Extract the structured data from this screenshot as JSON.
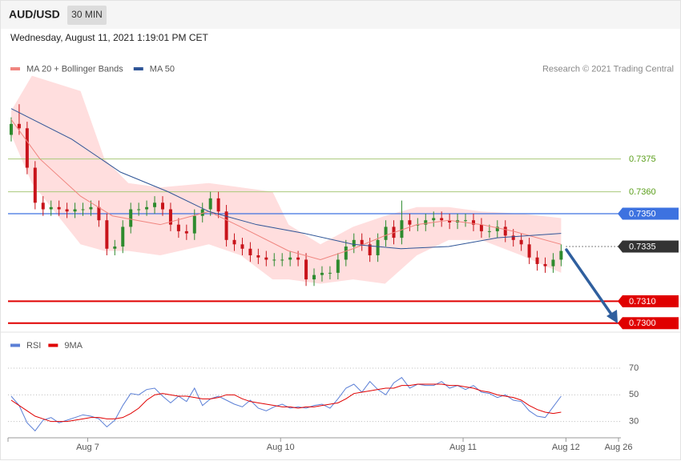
{
  "header": {
    "symbol": "AUD/USD",
    "interval": "30 MIN",
    "timestamp": "Wednesday, August 11, 2021 1:19:01 PM CET"
  },
  "chart_data": [
    {
      "type": "candlestick",
      "credit": "Research © 2021 Trading Central",
      "up_color": "#2e8b2e",
      "down_color": "#c8141b",
      "open": [
        0.7386,
        0.7391,
        0.7389,
        0.7371,
        0.7355,
        0.7352,
        0.7353,
        0.7352,
        0.7351,
        0.7352,
        0.7352,
        0.7353,
        0.7347,
        0.7334,
        0.7335,
        0.7344,
        0.7352,
        0.7352,
        0.7353,
        0.7355,
        0.7352,
        0.7345,
        0.7342,
        0.7341,
        0.7349,
        0.7352,
        0.7357,
        0.7351,
        0.7338,
        0.7336,
        0.7334,
        0.7331,
        0.733,
        0.7329,
        0.7329,
        0.7329,
        0.733,
        0.7329,
        0.732,
        0.7322,
        0.7323,
        0.7323,
        0.7329,
        0.7335,
        0.7338,
        0.7336,
        0.7331,
        0.7338,
        0.7344,
        0.7339,
        0.7347,
        0.7345,
        0.7345,
        0.7347,
        0.7348,
        0.7347,
        0.7346,
        0.7347,
        0.7347,
        0.7345,
        0.7342,
        0.7342,
        0.7344,
        0.734,
        0.7338,
        0.7336,
        0.733,
        0.7327,
        0.7326,
        0.7329
      ],
      "high": [
        0.7394,
        0.74,
        0.7392,
        0.7374,
        0.7358,
        0.7356,
        0.7356,
        0.7355,
        0.7355,
        0.7355,
        0.7356,
        0.7356,
        0.735,
        0.7338,
        0.7347,
        0.7355,
        0.7355,
        0.7356,
        0.7358,
        0.7358,
        0.7355,
        0.7348,
        0.7345,
        0.7352,
        0.7355,
        0.736,
        0.736,
        0.7354,
        0.7341,
        0.7339,
        0.7337,
        0.7334,
        0.7333,
        0.7332,
        0.7332,
        0.7333,
        0.7333,
        0.7332,
        0.7325,
        0.7326,
        0.7326,
        0.7332,
        0.7338,
        0.7341,
        0.7341,
        0.7339,
        0.7341,
        0.7347,
        0.7347,
        0.7356,
        0.735,
        0.7348,
        0.735,
        0.7351,
        0.7351,
        0.735,
        0.735,
        0.735,
        0.735,
        0.7348,
        0.7345,
        0.7347,
        0.7347,
        0.7343,
        0.7341,
        0.7339,
        0.7333,
        0.733,
        0.7332,
        0.7336
      ],
      "low": [
        0.7383,
        0.7386,
        0.7368,
        0.7352,
        0.7349,
        0.7349,
        0.7349,
        0.7348,
        0.7348,
        0.7349,
        0.7349,
        0.7344,
        0.7331,
        0.7331,
        0.7332,
        0.7341,
        0.7349,
        0.7349,
        0.735,
        0.7349,
        0.7342,
        0.7339,
        0.7338,
        0.7338,
        0.7346,
        0.7349,
        0.7348,
        0.7335,
        0.7333,
        0.7331,
        0.7328,
        0.7327,
        0.7326,
        0.7326,
        0.7326,
        0.7326,
        0.7326,
        0.7317,
        0.7317,
        0.7319,
        0.732,
        0.732,
        0.7326,
        0.7332,
        0.7333,
        0.7328,
        0.7328,
        0.7335,
        0.7336,
        0.7336,
        0.7342,
        0.7342,
        0.7342,
        0.7344,
        0.7344,
        0.7343,
        0.7343,
        0.7344,
        0.7342,
        0.7339,
        0.7339,
        0.7339,
        0.7337,
        0.7335,
        0.7333,
        0.7327,
        0.7324,
        0.7323,
        0.7323,
        0.7326
      ],
      "close": [
        0.7391,
        0.7389,
        0.7371,
        0.7355,
        0.7352,
        0.7353,
        0.7352,
        0.7351,
        0.7352,
        0.7352,
        0.7353,
        0.7347,
        0.7334,
        0.7335,
        0.7344,
        0.7352,
        0.7352,
        0.7353,
        0.7355,
        0.7352,
        0.7345,
        0.7342,
        0.7341,
        0.7349,
        0.7352,
        0.7357,
        0.7351,
        0.7338,
        0.7336,
        0.7334,
        0.7331,
        0.733,
        0.7329,
        0.7329,
        0.7329,
        0.733,
        0.7329,
        0.732,
        0.7322,
        0.7323,
        0.7323,
        0.7329,
        0.7335,
        0.7338,
        0.7336,
        0.7331,
        0.7338,
        0.7344,
        0.7339,
        0.7347,
        0.7345,
        0.7345,
        0.7347,
        0.7348,
        0.7347,
        0.7346,
        0.7347,
        0.7347,
        0.7345,
        0.7342,
        0.7342,
        0.7344,
        0.734,
        0.7338,
        0.7336,
        0.733,
        0.7327,
        0.7326,
        0.7329,
        0.7333
      ],
      "series": [
        {
          "name": "MA 20 + Bollinger Bands",
          "color": "#f0857f",
          "x": [
            0,
            3.6,
            8.7,
            12.7,
            18.7,
            24.8,
            28.8,
            34.8,
            38.8,
            42.9,
            46.9,
            50.9,
            54.9,
            59.0,
            63.0,
            69
          ],
          "values": [
            0.7393,
            0.7375,
            0.7358,
            0.7349,
            0.7345,
            0.7351,
            0.7344,
            0.7333,
            0.7329,
            0.7334,
            0.734,
            0.7345,
            0.7347,
            0.7345,
            0.7342,
            0.7336
          ]
        },
        {
          "name": "MA 50",
          "color": "#2f5597",
          "x": [
            0,
            7.6,
            13.7,
            19.7,
            24.8,
            30.8,
            36.8,
            42.9,
            48.9,
            54.9,
            61.0,
            69
          ],
          "values": [
            0.7398,
            0.7384,
            0.7369,
            0.736,
            0.7351,
            0.7345,
            0.7341,
            0.7336,
            0.7334,
            0.7335,
            0.7339,
            0.7341
          ]
        }
      ],
      "bands": {
        "color": "#ffdede",
        "x": [
          0,
          2.6,
          8.7,
          11.7,
          14.7,
          18.7,
          24.8,
          28.8,
          32.8,
          34.8,
          38.8,
          42.9,
          46.9,
          50.9,
          54.9,
          59.0,
          64.0,
          69
        ],
        "upper": [
          0.7397,
          0.7413,
          0.7406,
          0.7375,
          0.7364,
          0.7362,
          0.7364,
          0.7362,
          0.736,
          0.7345,
          0.7336,
          0.7344,
          0.7349,
          0.7353,
          0.7353,
          0.7351,
          0.735,
          0.7348
        ],
        "lower": [
          0.7386,
          0.7364,
          0.7336,
          0.7333,
          0.7333,
          0.7331,
          0.7336,
          0.7331,
          0.732,
          0.732,
          0.7318,
          0.732,
          0.7318,
          0.7331,
          0.7338,
          0.7338,
          0.7331,
          0.7323
        ]
      },
      "levels": [
        {
          "price": 0.7375,
          "color": "#a9c97a",
          "text_color": "#5a9e1a",
          "boxed": false,
          "line": "solid",
          "width": 1
        },
        {
          "price": {
            "value": 0.736,
            "label": "0.7360"
          },
          "color": "#a9c97a",
          "text_color": "#5a9e1a",
          "boxed": false,
          "line": "solid",
          "width": 1
        },
        {
          "price": {
            "value": 0.735,
            "label": "0.7350"
          },
          "color": "#3d72e0",
          "text_color": "#ffffff",
          "boxed": true,
          "line": "solid",
          "width": 1.2
        },
        {
          "price": 0.7335,
          "color": "#555555",
          "text_color": "#ffffff",
          "box_color": "#333333",
          "boxed": true,
          "line": "dotted",
          "width": 1
        },
        {
          "price": {
            "value": 0.731,
            "label": "0.7310"
          },
          "color": "#e00000",
          "text_color": "#ffffff",
          "boxed": true,
          "line": "solid",
          "width": 2
        },
        {
          "price": {
            "value": 0.73,
            "label": "0.7300"
          },
          "color": "#e00000",
          "text_color": "#ffffff",
          "boxed": true,
          "line": "solid",
          "width": 2
        }
      ],
      "xlim": [
        -0.4,
        76.5
      ],
      "ylim": [
        0.7297,
        0.7422
      ]
    },
    {
      "type": "line",
      "series": [
        {
          "name": "RSI",
          "color": "#5b7fd6",
          "values": [
            49,
            42,
            29,
            23,
            31,
            33,
            29,
            31,
            33,
            35,
            34,
            32,
            26,
            31,
            42,
            51,
            50,
            54,
            55,
            49,
            44,
            49,
            45,
            55,
            42,
            47,
            49,
            46,
            43,
            41,
            46,
            40,
            38,
            41,
            43,
            40,
            41,
            40,
            42,
            43,
            40,
            47,
            55,
            58,
            52,
            60,
            54,
            50,
            59,
            63,
            55,
            58,
            57,
            57,
            60,
            55,
            57,
            54,
            57,
            52,
            51,
            48,
            50,
            46,
            45,
            38,
            34,
            33,
            41,
            49
          ]
        },
        {
          "name": "9MA",
          "color": "#e00000",
          "values": [
            46,
            42,
            38,
            34,
            32,
            30,
            30,
            30,
            31,
            32,
            33,
            33,
            32,
            32,
            33,
            36,
            40,
            46,
            50,
            51,
            50,
            49,
            49,
            48,
            47,
            47,
            48,
            50,
            50,
            47,
            45,
            44,
            43,
            42,
            41,
            41,
            40,
            41,
            41,
            42,
            43,
            44,
            47,
            51,
            52,
            53,
            54,
            55,
            55,
            57,
            57,
            58,
            58,
            58,
            58,
            57,
            57,
            56,
            55,
            53,
            52,
            50,
            49,
            48,
            46,
            42,
            39,
            37,
            36,
            37
          ]
        }
      ],
      "xlim": [
        -0.4,
        76.5
      ],
      "xticks": [
        {
          "value": 9.6,
          "label": "Aug 7"
        },
        {
          "value": 33.8,
          "label": "Aug 10"
        },
        {
          "value": 56.7,
          "label": "Aug 11"
        },
        {
          "value": 69.6,
          "label": "Aug 12"
        },
        {
          "value": 76.2,
          "label": "Aug 26"
        }
      ],
      "ylim": [
        19,
        82
      ],
      "yticks": [
        70,
        50,
        30
      ]
    }
  ]
}
